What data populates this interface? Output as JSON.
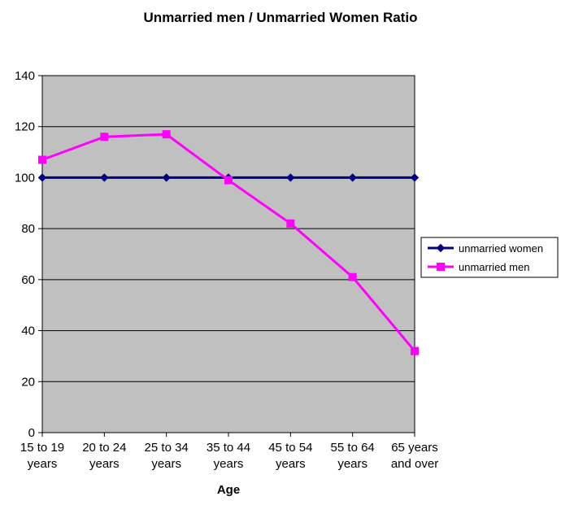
{
  "chart_data": {
    "type": "line",
    "title": "Unmarried men / Unmarried Women Ratio",
    "xlabel": "Age",
    "ylabel": "",
    "categories": [
      [
        "15 to 19",
        "years"
      ],
      [
        "20 to 24",
        "years"
      ],
      [
        "25 to 34",
        "years"
      ],
      [
        "35 to 44",
        "years"
      ],
      [
        "45 to 54",
        "years"
      ],
      [
        "55 to 64",
        "years"
      ],
      [
        "65 years",
        "and over"
      ]
    ],
    "series": [
      {
        "name": "unmarried women",
        "color": "#000080",
        "marker": "diamond",
        "values": [
          100,
          100,
          100,
          100,
          100,
          100,
          100
        ]
      },
      {
        "name": "unmarried men",
        "color": "#ff00ff",
        "marker": "square",
        "values": [
          107,
          116,
          117,
          99,
          82,
          61,
          32
        ]
      }
    ],
    "ylim": [
      0,
      140
    ],
    "yticks": [
      0,
      20,
      40,
      60,
      80,
      100,
      120,
      140
    ],
    "grid": true,
    "plot_background": "#c0c0c0",
    "legend_position": "right"
  }
}
